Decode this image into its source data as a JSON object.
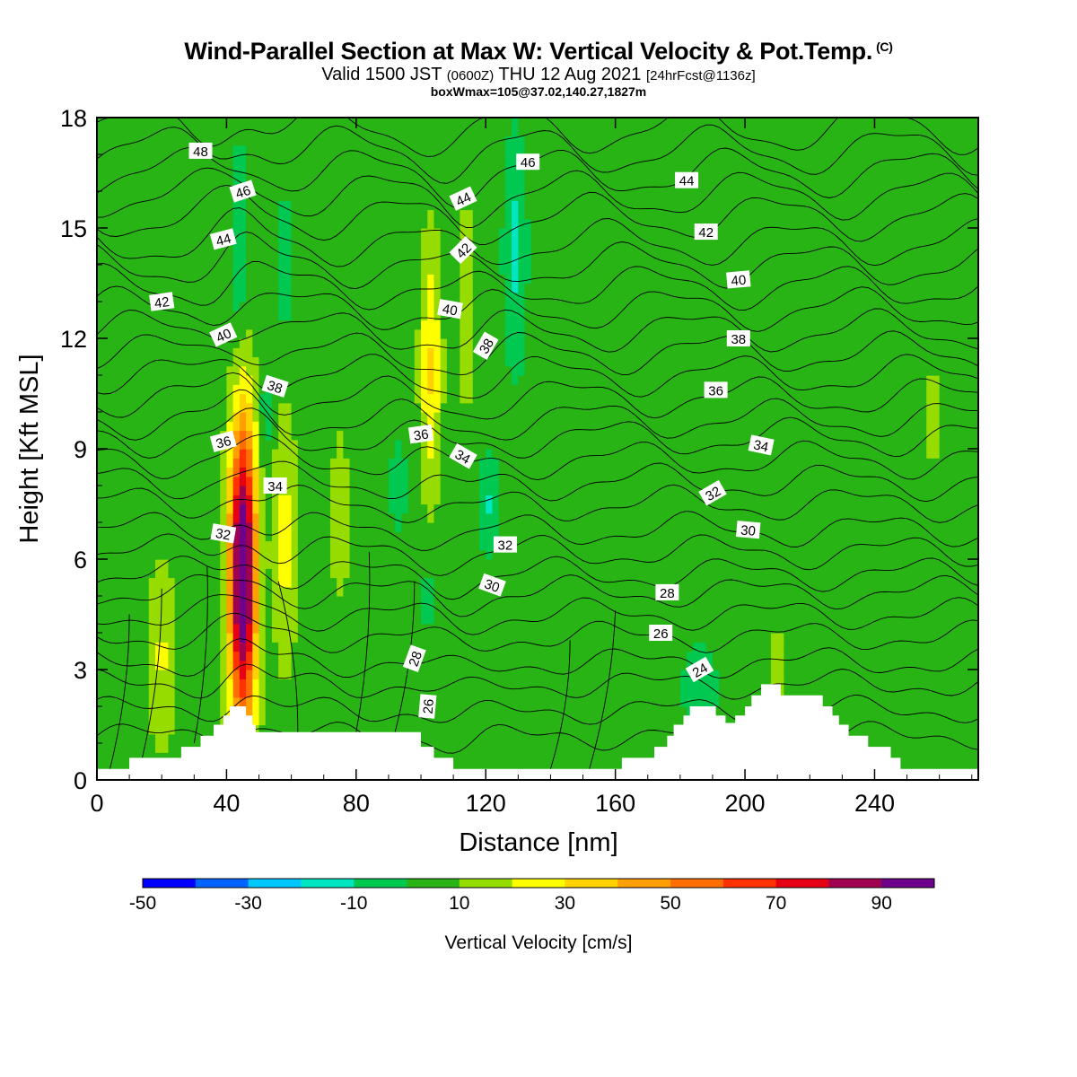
{
  "chart_data": {
    "type": "heatmap",
    "title": "Wind-Parallel Section at Max W: Vertical Velocity & Pot.Temp.",
    "title_mark": "(C)",
    "subtitle": {
      "valid": "Valid 1500 JST",
      "utc": "(0600Z)",
      "date": "THU 12 Aug 2021",
      "fcst": "[24hrFcst@1136z]"
    },
    "subtitle2": "boxWmax=105@37.02,140.27,1827m",
    "xlabel": "Distance [nm]",
    "ylabel": "Height [Kft MSL]",
    "xlim": [
      0,
      272
    ],
    "ylim": [
      0,
      18
    ],
    "x_ticks": [
      0,
      40,
      80,
      120,
      160,
      200,
      240
    ],
    "y_ticks": [
      0,
      3,
      6,
      9,
      12,
      15,
      18
    ],
    "colorbar": {
      "label": "Vertical Velocity [cm/s]",
      "bounds": [
        -50,
        -40,
        -30,
        -20,
        -10,
        0,
        10,
        20,
        30,
        40,
        50,
        60,
        70,
        80,
        90,
        100
      ],
      "tick_labels": [
        -50,
        -30,
        -10,
        10,
        30,
        50,
        70,
        90
      ],
      "colors": [
        "#0000ff",
        "#0064ff",
        "#00c8ff",
        "#00e6c0",
        "#00c850",
        "#28b414",
        "#96dc00",
        "#ffff00",
        "#ffd200",
        "#ffa000",
        "#ff6e00",
        "#ff3200",
        "#e60014",
        "#a00050",
        "#6e008c"
      ]
    },
    "background_velocity": 5,
    "velocity_features": [
      {
        "x": 45,
        "y": 5.6,
        "w_half": 4.5,
        "h_half": 4.6,
        "value": 105
      },
      {
        "x": 103,
        "y": 11.2,
        "w_half": 3.5,
        "h_half": 3.6,
        "value": 26
      },
      {
        "x": 114,
        "y": 12.8,
        "w_half": 3.0,
        "h_half": 2.9,
        "value": 16
      },
      {
        "x": 58,
        "y": 6.5,
        "w_half": 4.0,
        "h_half": 3.8,
        "value": 18
      },
      {
        "x": 20,
        "y": 3.4,
        "w_half": 5.0,
        "h_half": 2.8,
        "value": 16
      },
      {
        "x": 75,
        "y": 7.2,
        "w_half": 3.0,
        "h_half": 2.5,
        "value": 14
      },
      {
        "x": 210,
        "y": 3.0,
        "w_half": 3.0,
        "h_half": 1.2,
        "value": 15
      },
      {
        "x": 258,
        "y": 10.0,
        "w_half": 3.0,
        "h_half": 1.5,
        "value": 12
      },
      {
        "x": 44,
        "y": 14.5,
        "w_half": 3.0,
        "h_half": 3.0,
        "value": -16
      },
      {
        "x": 58,
        "y": 14.0,
        "w_half": 2.2,
        "h_half": 2.2,
        "value": -13
      },
      {
        "x": 129,
        "y": 14.5,
        "w_half": 4.0,
        "h_half": 3.5,
        "value": -17
      },
      {
        "x": 52,
        "y": 10.0,
        "w_half": 2.0,
        "h_half": 1.5,
        "value": -13
      },
      {
        "x": 121,
        "y": 7.5,
        "w_half": 3.2,
        "h_half": 1.6,
        "value": -15
      },
      {
        "x": 93,
        "y": 8.0,
        "w_half": 3.0,
        "h_half": 1.4,
        "value": -11
      },
      {
        "x": 186,
        "y": 2.6,
        "w_half": 6.0,
        "h_half": 1.2,
        "value": -14
      },
      {
        "x": 102,
        "y": 5.0,
        "w_half": 2.0,
        "h_half": 1.0,
        "value": -12
      },
      {
        "x": 174,
        "y": 16.0,
        "w_half": 20.0,
        "h_half": 2.5,
        "value": -4
      },
      {
        "x": 225,
        "y": 14.0,
        "w_half": 35.0,
        "h_half": 4.5,
        "value": -3
      },
      {
        "x": 150,
        "y": 9.0,
        "w_half": 25.0,
        "h_half": 4.0,
        "value": -3
      },
      {
        "x": 240,
        "y": 4.5,
        "w_half": 25.0,
        "h_half": 2.5,
        "value": -3
      }
    ],
    "terrain": [
      [
        0,
        0.3
      ],
      [
        10,
        0.3
      ],
      [
        10,
        0.6
      ],
      [
        26,
        0.6
      ],
      [
        26,
        0.9
      ],
      [
        32,
        0.9
      ],
      [
        32,
        1.2
      ],
      [
        36,
        1.2
      ],
      [
        36,
        1.5
      ],
      [
        39,
        1.5
      ],
      [
        39,
        1.75
      ],
      [
        41,
        1.75
      ],
      [
        41,
        2.0
      ],
      [
        46,
        2.0
      ],
      [
        46,
        1.75
      ],
      [
        48,
        1.75
      ],
      [
        48,
        1.5
      ],
      [
        49,
        1.5
      ],
      [
        49,
        1.3
      ],
      [
        100,
        1.3
      ],
      [
        100,
        0.9
      ],
      [
        104,
        0.9
      ],
      [
        104,
        0.6
      ],
      [
        110,
        0.6
      ],
      [
        110,
        0.3
      ],
      [
        162,
        0.3
      ],
      [
        162,
        0.6
      ],
      [
        172,
        0.6
      ],
      [
        172,
        0.9
      ],
      [
        176,
        0.9
      ],
      [
        176,
        1.2
      ],
      [
        178,
        1.2
      ],
      [
        178,
        1.5
      ],
      [
        181,
        1.5
      ],
      [
        181,
        1.75
      ],
      [
        183,
        1.75
      ],
      [
        183,
        2.0
      ],
      [
        191,
        2.0
      ],
      [
        191,
        1.75
      ],
      [
        194,
        1.75
      ],
      [
        194,
        1.55
      ],
      [
        197,
        1.55
      ],
      [
        197,
        1.75
      ],
      [
        200,
        1.75
      ],
      [
        200,
        2.0
      ],
      [
        202,
        2.0
      ],
      [
        202,
        2.3
      ],
      [
        205,
        2.3
      ],
      [
        205,
        2.6
      ],
      [
        211,
        2.6
      ],
      [
        211,
        2.3
      ],
      [
        224,
        2.3
      ],
      [
        224,
        2.0
      ],
      [
        227,
        2.0
      ],
      [
        227,
        1.75
      ],
      [
        229,
        1.75
      ],
      [
        229,
        1.5
      ],
      [
        232,
        1.5
      ],
      [
        232,
        1.2
      ],
      [
        238,
        1.2
      ],
      [
        238,
        0.9
      ],
      [
        245,
        0.9
      ],
      [
        245,
        0.6
      ],
      [
        248,
        0.6
      ],
      [
        248,
        0.3
      ],
      [
        272,
        0.3
      ]
    ],
    "theta_contours": {
      "levels": [
        22,
        23,
        24,
        25,
        26,
        27,
        28,
        29,
        30,
        31,
        32,
        33,
        34,
        35,
        36,
        37,
        38,
        39,
        40,
        41,
        42,
        43,
        44,
        45,
        46,
        47,
        48,
        49
      ],
      "base_height": {
        "22": 1.2,
        "23": 1.9,
        "24": 2.6,
        "25": 3.2,
        "26": 3.9,
        "27": 4.5,
        "28": 5.1,
        "29": 5.6,
        "30": 6.2,
        "31": 6.8,
        "32": 7.5,
        "33": 8.1,
        "34": 8.7,
        "35": 9.3,
        "36": 9.8,
        "37": 10.4,
        "38": 11.0,
        "39": 11.6,
        "40": 12.2,
        "41": 12.8,
        "42": 13.4,
        "43": 14.0,
        "44": 14.6,
        "45": 15.3,
        "46": 15.9,
        "47": 16.5,
        "48": 17.1,
        "49": 17.7
      }
    },
    "contour_labels": [
      {
        "text": "48",
        "x": 32,
        "y": 17.1,
        "rot": 0
      },
      {
        "text": "46",
        "x": 45,
        "y": 16.0,
        "rot": -18
      },
      {
        "text": "44",
        "x": 39,
        "y": 14.7,
        "rot": -15
      },
      {
        "text": "42",
        "x": 20,
        "y": 13.0,
        "rot": -8
      },
      {
        "text": "40",
        "x": 39,
        "y": 12.1,
        "rot": -25
      },
      {
        "text": "38",
        "x": 55,
        "y": 10.7,
        "rot": 18
      },
      {
        "text": "36",
        "x": 39,
        "y": 9.2,
        "rot": -15
      },
      {
        "text": "34",
        "x": 55,
        "y": 8.0,
        "rot": 0
      },
      {
        "text": "32",
        "x": 39,
        "y": 6.7,
        "rot": 10
      },
      {
        "text": "46",
        "x": 133,
        "y": 16.8,
        "rot": 0
      },
      {
        "text": "44",
        "x": 113,
        "y": 15.8,
        "rot": -25
      },
      {
        "text": "42",
        "x": 113,
        "y": 14.4,
        "rot": -45
      },
      {
        "text": "40",
        "x": 109,
        "y": 12.8,
        "rot": 10
      },
      {
        "text": "38",
        "x": 120,
        "y": 11.8,
        "rot": -60
      },
      {
        "text": "36",
        "x": 100,
        "y": 9.4,
        "rot": -8
      },
      {
        "text": "34",
        "x": 113,
        "y": 8.8,
        "rot": 30
      },
      {
        "text": "32",
        "x": 126,
        "y": 6.4,
        "rot": 0
      },
      {
        "text": "30",
        "x": 122,
        "y": 5.3,
        "rot": 20
      },
      {
        "text": "28",
        "x": 98,
        "y": 3.3,
        "rot": -70
      },
      {
        "text": "26",
        "x": 102,
        "y": 2.0,
        "rot": -85
      },
      {
        "text": "44",
        "x": 182,
        "y": 16.3,
        "rot": 0
      },
      {
        "text": "42",
        "x": 188,
        "y": 14.9,
        "rot": 0
      },
      {
        "text": "40",
        "x": 198,
        "y": 13.6,
        "rot": -5
      },
      {
        "text": "38",
        "x": 198,
        "y": 12.0,
        "rot": 0
      },
      {
        "text": "36",
        "x": 191,
        "y": 10.6,
        "rot": 0
      },
      {
        "text": "34",
        "x": 205,
        "y": 9.1,
        "rot": 12
      },
      {
        "text": "32",
        "x": 190,
        "y": 7.8,
        "rot": -30
      },
      {
        "text": "30",
        "x": 201,
        "y": 6.8,
        "rot": 5
      },
      {
        "text": "28",
        "x": 176,
        "y": 5.1,
        "rot": 0
      },
      {
        "text": "26",
        "x": 174,
        "y": 4.0,
        "rot": 0
      },
      {
        "text": "24",
        "x": 186,
        "y": 3.0,
        "rot": -30
      }
    ]
  }
}
